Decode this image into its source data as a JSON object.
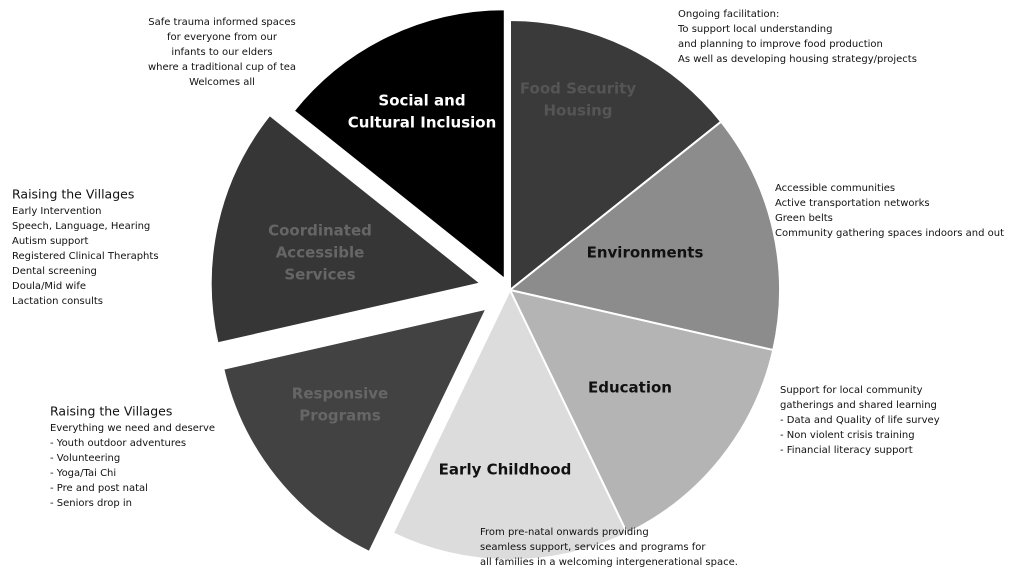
{
  "segments": [
    {
      "label": [
        "Food Security",
        "Housing"
      ],
      "note": {
        "lines": [
          "Ongoing facilitation:",
          "To support local understanding",
          "and planning to improve food production",
          "As well as developing housing strategy/projects"
        ]
      }
    },
    {
      "label": [
        "Environments"
      ],
      "note": {
        "lines": [
          "Accessible communities",
          "Active transportation networks",
          "Green belts",
          "Community gathering spaces indoors and out"
        ]
      }
    },
    {
      "label": [
        "Education"
      ],
      "note": {
        "lines": [
          "Support for local community",
          "gatherings and shared learning",
          "- Data and Quality of life survey",
          "- Non violent crisis training",
          "-  Financial literacy support"
        ]
      }
    },
    {
      "label": [
        "Early Childhood"
      ],
      "note": {
        "lines": [
          "From pre-natal onwards providing",
          "seamless support, services and programs for",
          "all families in a welcoming intergenerational space."
        ]
      }
    },
    {
      "label": [
        "Responsive",
        "Programs"
      ],
      "note": {
        "heading": "Raising the Villages",
        "lines": [
          "Everything we need and deserve",
          "- Youth outdoor adventures",
          "- Volunteering",
          "- Yoga/Tai Chi",
          "- Pre and post natal",
          "- Seniors drop in"
        ]
      }
    },
    {
      "label": [
        "Coordinated",
        "Accessible",
        "Services"
      ],
      "note": {
        "heading": "Raising the Villages",
        "lines": [
          "Early Intervention",
          "Speech, Language, Hearing",
          "Autism support",
          "Registered Clinical Theraphts",
          "Dental screening",
          "Doula/Mid wife",
          "Lactation consults"
        ]
      }
    },
    {
      "label": [
        "Social and",
        "Cultural Inclusion"
      ],
      "note": {
        "lines": [
          "Safe trauma informed spaces",
          "for everyone from our",
          "infants to our elders",
          "where a traditional cup of tea",
          "Welcomes all"
        ]
      }
    }
  ]
}
